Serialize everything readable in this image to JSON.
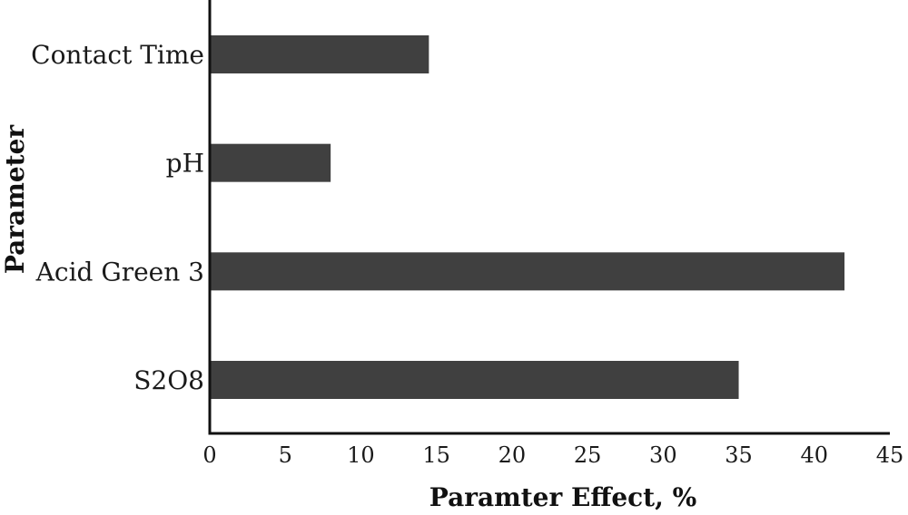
{
  "chart_data": {
    "type": "bar",
    "orientation": "horizontal",
    "title": "",
    "xlabel": "Paramter Effect, %",
    "ylabel": "Parameter",
    "categories": [
      "Contact Time",
      "pH",
      "Acid Green 3",
      "S2O8"
    ],
    "values": [
      14.5,
      8,
      42,
      35
    ],
    "xlim": [
      0,
      45
    ],
    "xticks": [
      0,
      5,
      10,
      15,
      20,
      25,
      30,
      35,
      40,
      45
    ],
    "grid": false,
    "legend": "none",
    "bar_color": "#404040"
  }
}
